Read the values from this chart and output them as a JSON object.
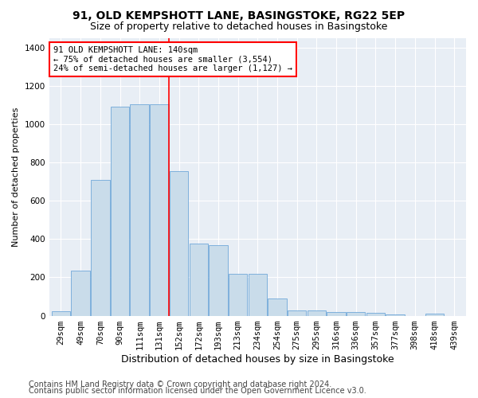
{
  "title1": "91, OLD KEMPSHOTT LANE, BASINGSTOKE, RG22 5EP",
  "title2": "Size of property relative to detached houses in Basingstoke",
  "xlabel": "Distribution of detached houses by size in Basingstoke",
  "ylabel": "Number of detached properties",
  "categories": [
    "29sqm",
    "49sqm",
    "70sqm",
    "90sqm",
    "111sqm",
    "131sqm",
    "152sqm",
    "172sqm",
    "193sqm",
    "213sqm",
    "234sqm",
    "254sqm",
    "275sqm",
    "295sqm",
    "316sqm",
    "336sqm",
    "357sqm",
    "377sqm",
    "398sqm",
    "418sqm",
    "439sqm"
  ],
  "values": [
    25,
    237,
    710,
    1090,
    1105,
    1105,
    755,
    375,
    370,
    220,
    220,
    90,
    28,
    28,
    18,
    18,
    15,
    8,
    0,
    10,
    0
  ],
  "bar_color": "#c9dcea",
  "bar_edge_color": "#5b9bd5",
  "vline_x_index": 5.5,
  "annotation_text": "91 OLD KEMPSHOTT LANE: 140sqm\n← 75% of detached houses are smaller (3,554)\n24% of semi-detached houses are larger (1,127) →",
  "annotation_box_color": "white",
  "annotation_box_edgecolor": "red",
  "vline_color": "red",
  "ylim": [
    0,
    1450
  ],
  "yticks": [
    0,
    200,
    400,
    600,
    800,
    1000,
    1200,
    1400
  ],
  "footer1": "Contains HM Land Registry data © Crown copyright and database right 2024.",
  "footer2": "Contains public sector information licensed under the Open Government Licence v3.0.",
  "bg_color": "#ffffff",
  "plot_bg_color": "#e8eef5",
  "title1_fontsize": 10,
  "title2_fontsize": 9,
  "xlabel_fontsize": 9,
  "ylabel_fontsize": 8,
  "tick_fontsize": 7.5,
  "footer_fontsize": 7,
  "ann_fontsize": 7.5
}
